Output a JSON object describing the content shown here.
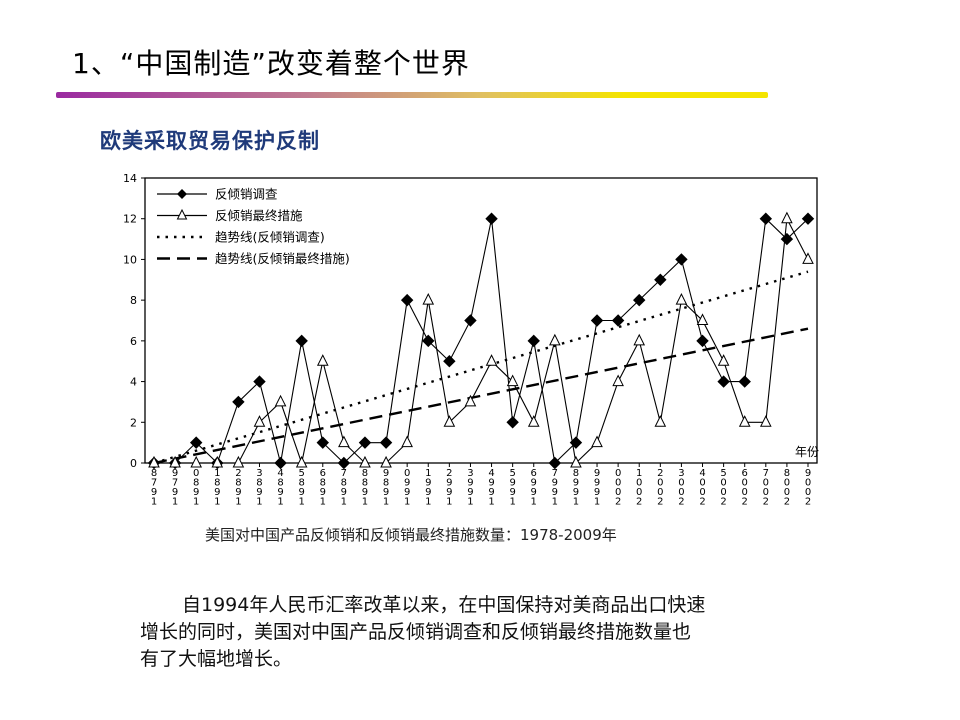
{
  "slide": {
    "title": "1、“中国制造”改变着整个世界",
    "subtitle": "欧美采取贸易保护反制",
    "caption": "美国对中国产品反倾销和反倾销最终措施数量：1978-2009年",
    "paragraph_lines": [
      "自1994年人民币汇率改革以来，在中国保持对美商品出口快速",
      "增长的同时，美国对中国产品反倾销调查和反倾销最终措施数量也",
      "有了大幅地增长。"
    ]
  },
  "chart_data": {
    "type": "line",
    "title": "",
    "xlabel": "年份",
    "ylabel": "",
    "ylim": [
      0,
      14
    ],
    "yticks": [
      0,
      2,
      4,
      6,
      8,
      10,
      12,
      14
    ],
    "x": [
      1978,
      1979,
      1980,
      1981,
      1982,
      1983,
      1984,
      1985,
      1986,
      1987,
      1988,
      1989,
      1990,
      1991,
      1992,
      1993,
      1994,
      1995,
      1996,
      1997,
      1998,
      1999,
      2000,
      2001,
      2002,
      2003,
      2004,
      2005,
      2006,
      2007,
      2008,
      2009
    ],
    "xtick_labels": [
      [
        "8",
        "7",
        "9",
        "1"
      ],
      [
        "9",
        "7",
        "9",
        "1"
      ],
      [
        "0",
        "8",
        "9",
        "1"
      ],
      [
        "1",
        "8",
        "9",
        "1"
      ],
      [
        "2",
        "8",
        "9",
        "1"
      ],
      [
        "3",
        "8",
        "9",
        "1"
      ],
      [
        "4",
        "8",
        "9",
        "1"
      ],
      [
        "5",
        "8",
        "9",
        "1"
      ],
      [
        "6",
        "8",
        "9",
        "1"
      ],
      [
        "7",
        "8",
        "9",
        "1"
      ],
      [
        "8",
        "8",
        "9",
        "1"
      ],
      [
        "9",
        "8",
        "9",
        "1"
      ],
      [
        "0",
        "9",
        "9",
        "1"
      ],
      [
        "1",
        "9",
        "9",
        "1"
      ],
      [
        "2",
        "9",
        "9",
        "1"
      ],
      [
        "3",
        "9",
        "9",
        "1"
      ],
      [
        "4",
        "9",
        "9",
        "1"
      ],
      [
        "5",
        "9",
        "9",
        "1"
      ],
      [
        "6",
        "9",
        "9",
        "1"
      ],
      [
        "7",
        "9",
        "9",
        "1"
      ],
      [
        "8",
        "9",
        "9",
        "1"
      ],
      [
        "9",
        "9",
        "9",
        "1"
      ],
      [
        "0",
        "0",
        "0",
        "2"
      ],
      [
        "1",
        "0",
        "0",
        "2"
      ],
      [
        "2",
        "0",
        "0",
        "2"
      ],
      [
        "3",
        "0",
        "0",
        "2"
      ],
      [
        "4",
        "0",
        "0",
        "2"
      ],
      [
        "5",
        "0",
        "0",
        "2"
      ],
      [
        "6",
        "0",
        "0",
        "2"
      ],
      [
        "7",
        "0",
        "0",
        "2"
      ],
      [
        "8",
        "0",
        "0",
        "2"
      ],
      [
        "9",
        "0",
        "0",
        "2"
      ]
    ],
    "legend_position": "top-left",
    "series": [
      {
        "name": "反倾销调查",
        "marker": "diamond-filled",
        "color": "#000000",
        "values": [
          0,
          0,
          1,
          0,
          3,
          4,
          0,
          6,
          1,
          0,
          1,
          1,
          8,
          6,
          5,
          7,
          12,
          2,
          6,
          0,
          1,
          7,
          7,
          8,
          9,
          10,
          6,
          4,
          4,
          12,
          11,
          12
        ]
      },
      {
        "name": "反倾销最终措施",
        "marker": "triangle-open",
        "color": "#000000",
        "values": [
          0,
          0,
          0,
          0,
          0,
          2,
          3,
          0,
          5,
          1,
          0,
          0,
          1,
          8,
          2,
          3,
          5,
          4,
          2,
          6,
          0,
          1,
          4,
          6,
          2,
          8,
          7,
          5,
          2,
          2,
          12,
          10
        ]
      },
      {
        "name": "趋势线(反倾销调查)",
        "style": "dotted",
        "color": "#000000",
        "from": [
          1978,
          0.0
        ],
        "to": [
          2009,
          9.4
        ]
      },
      {
        "name": "趋势线(反倾销最终措施)",
        "style": "dashed",
        "color": "#000000",
        "from": [
          1978,
          0.0
        ],
        "to": [
          2009,
          6.6
        ]
      }
    ]
  }
}
